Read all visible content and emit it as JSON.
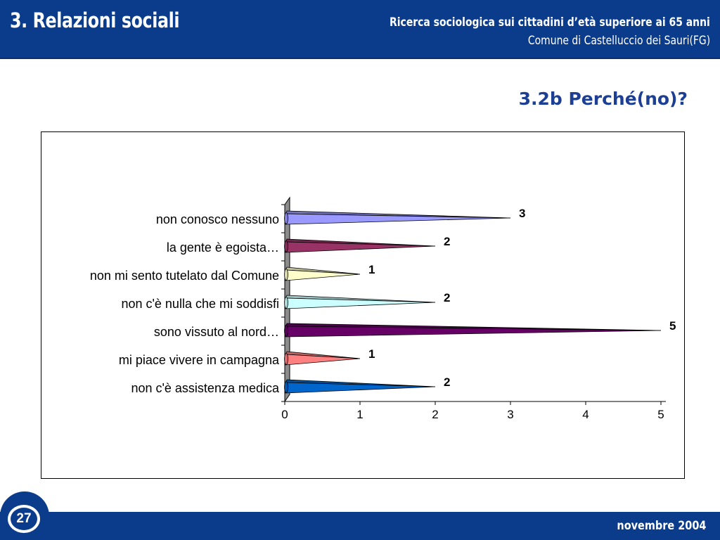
{
  "header": {
    "title": "3. Relazioni sociali",
    "subtitle_line1": "Ricerca sociologica sui cittadini d’età superiore ai 65 anni",
    "subtitle_line2": "Comune di Castelluccio dei Sauri(FG)"
  },
  "section_title": "3.2b Perché(no)?",
  "footer": {
    "page_number": "27",
    "date": "novembre 2004"
  },
  "chart_data": {
    "type": "bar",
    "orientation": "horizontal",
    "categories": [
      "non conosco nessuno",
      "la gente è egoista…",
      "non mi sento tutelato dal Comune",
      "non c'è nulla che mi soddisfi",
      "sono vissuto al nord…",
      "mi piace vivere in campagna",
      "non c'è assistenza medica"
    ],
    "values": [
      3,
      2,
      1,
      2,
      5,
      1,
      2
    ],
    "colors": [
      "#9999ff",
      "#993366",
      "#ffffcc",
      "#ccffff",
      "#660066",
      "#ff8080",
      "#0066cc"
    ],
    "xlim": [
      0,
      5
    ],
    "x_ticks": [
      0,
      1,
      2,
      3,
      4,
      5
    ],
    "title": "",
    "xlabel": "",
    "ylabel": "",
    "grid": false,
    "data_labels": true
  }
}
